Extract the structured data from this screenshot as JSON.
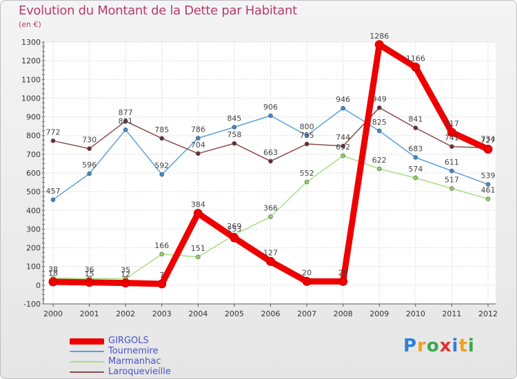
{
  "header": {
    "title": "Evolution du Montant de la Dette par Habitant",
    "subtitle": "(en €)"
  },
  "logo": {
    "letters": [
      "P",
      "r",
      "o",
      "x",
      "i",
      "t",
      "i"
    ],
    "colors": [
      "#2f7fd6",
      "#f0a020",
      "#3aa84a",
      "#d8342c",
      "#2f7fd6",
      "#f0a020",
      "#3aa84a"
    ]
  },
  "chart_data": {
    "type": "line",
    "categories": [
      "2000",
      "2001",
      "2002",
      "2003",
      "2004",
      "2005",
      "2006",
      "2007",
      "2008",
      "2009",
      "2010",
      "2011",
      "2012"
    ],
    "ylim": [
      -100,
      1300
    ],
    "yticks": [
      -100,
      0,
      100,
      200,
      300,
      400,
      500,
      600,
      700,
      800,
      900,
      1000,
      1100,
      1200,
      1300
    ],
    "grid": true,
    "legend_position": "bottom-left",
    "series": [
      {
        "name": "Tournemire",
        "color": "#5a9fd8",
        "marker": "#3f88cc",
        "values": [
          457,
          596,
          831,
          592,
          786,
          845,
          906,
          800,
          946,
          825,
          683,
          611,
          539
        ]
      },
      {
        "name": "Marmanhac",
        "color": "#a6df82",
        "marker": "#8fd060",
        "values": [
          38,
          36,
          35,
          166,
          151,
          269,
          366,
          552,
          692,
          622,
          574,
          517,
          461
        ]
      },
      {
        "name": "Laroquevieille",
        "color": "#8a4b4b",
        "marker": "#6e2d2d",
        "values": [
          772,
          730,
          877,
          785,
          704,
          758,
          663,
          755,
          744,
          949,
          841,
          741,
          734
        ]
      },
      {
        "name": "GIRGOLS",
        "color": "#ee0000",
        "marker": "#ee0000",
        "values": [
          18,
          15,
          12,
          7,
          384,
          253,
          127,
          20,
          20,
          1286,
          1166,
          817,
          727
        ]
      }
    ],
    "legend_order": [
      "GIRGOLS",
      "Tournemire",
      "Marmanhac",
      "Laroquevieille"
    ]
  }
}
